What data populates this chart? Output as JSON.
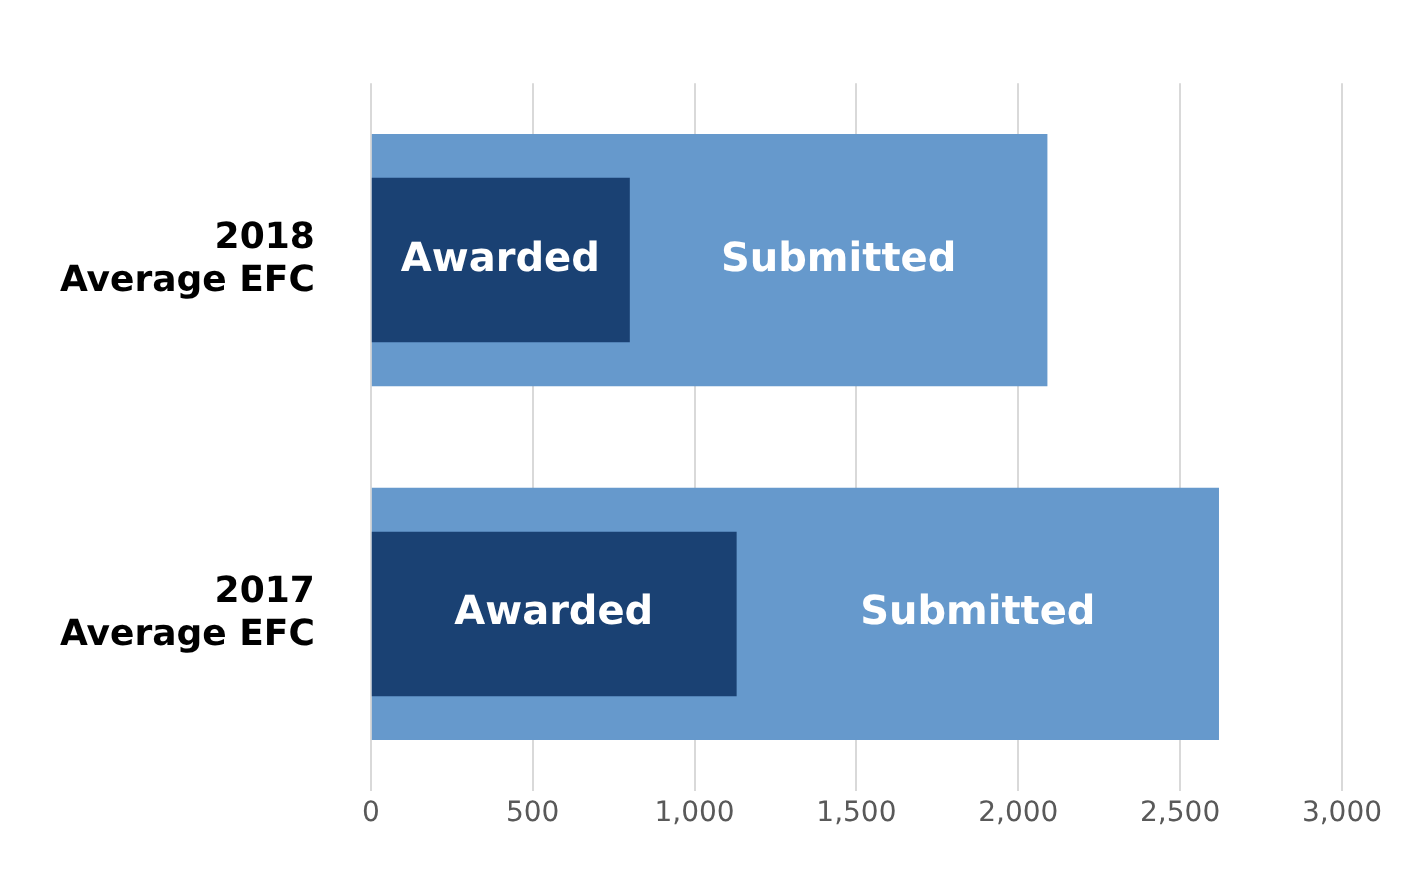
{
  "chart_data": {
    "type": "bar",
    "orientation": "horizontal",
    "categories": [
      "2018\nAverage EFC",
      "2017\nAverage EFC"
    ],
    "series": [
      {
        "name": "Submitted",
        "color": "#6699cc",
        "values": [
          2090,
          2620
        ]
      },
      {
        "name": "Awarded",
        "color": "#1a4173",
        "values": [
          800,
          1130
        ]
      }
    ],
    "xlim": [
      0,
      3000
    ],
    "xticks": [
      0,
      500,
      {
        "value": 1000,
        "label": "1,000"
      },
      {
        "value": 1500,
        "label": "1,500"
      },
      {
        "value": 2000,
        "label": "2,000"
      },
      {
        "value": 2500,
        "label": "2,500"
      },
      {
        "value": 3000,
        "label": "3,000"
      }
    ],
    "grid": "x",
    "legend": false
  }
}
